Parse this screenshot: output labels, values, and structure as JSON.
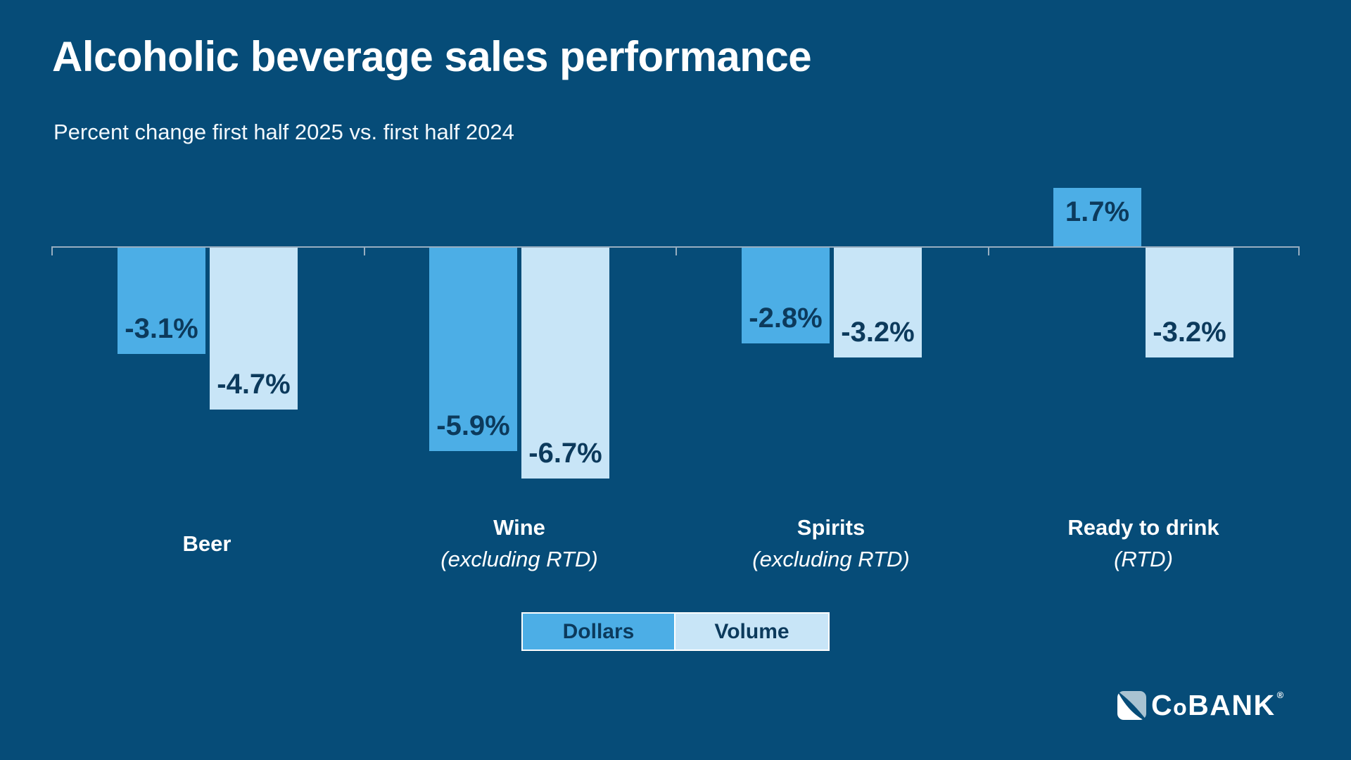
{
  "header": {
    "title": "Alcoholic beverage sales performance",
    "subtitle": "Percent change first half 2025 vs. first half 2024"
  },
  "colors": {
    "background": "#064C78",
    "dollars": "#4CAEE6",
    "volume": "#C8E5F7",
    "axis": "#98AEC0",
    "value_text": "#0C3A5C",
    "logo_swoosh": "#A9C3D2"
  },
  "chart_data": {
    "type": "bar",
    "title": "Alcoholic beverage sales performance",
    "subtitle": "Percent change first half 2025 vs. first half 2024",
    "unit": "%",
    "baseline": 0,
    "ylim": [
      -7,
      2
    ],
    "grid": false,
    "legend_position": "bottom-center",
    "categories": [
      {
        "label": "Beer",
        "sublabel": ""
      },
      {
        "label": "Wine",
        "sublabel": "(excluding RTD)"
      },
      {
        "label": "Spirits",
        "sublabel": "(excluding RTD)"
      },
      {
        "label": "Ready to drink",
        "sublabel": "(RTD)"
      }
    ],
    "series": [
      {
        "name": "Dollars",
        "color": "#4CAEE6",
        "values": [
          -3.1,
          -5.9,
          -2.8,
          1.7
        ],
        "labels": [
          "-3.1%",
          "-5.9%",
          "-2.8%",
          "1.7%"
        ]
      },
      {
        "name": "Volume",
        "color": "#C8E5F7",
        "values": [
          -4.7,
          -6.7,
          -3.2,
          -3.2
        ],
        "labels": [
          "-4.7%",
          "-6.7%",
          "-3.2%",
          "-3.2%"
        ]
      }
    ]
  },
  "legend": {
    "items": [
      {
        "label": "Dollars",
        "color": "#4CAEE6"
      },
      {
        "label": "Volume",
        "color": "#C8E5F7"
      }
    ]
  },
  "footer": {
    "brand_part_c": "C",
    "brand_part_o": "o",
    "brand_part_rest": "BANK",
    "registered_mark": "®"
  }
}
